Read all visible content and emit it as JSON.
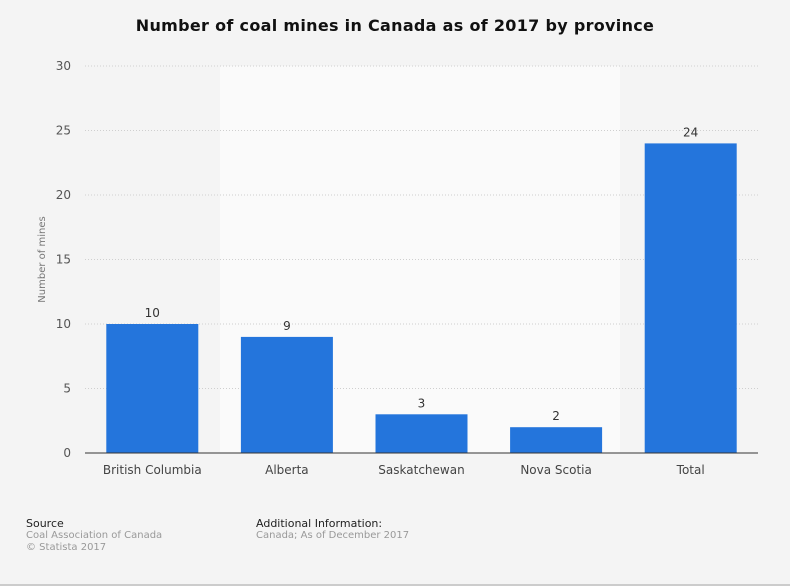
{
  "chart_data": {
    "type": "bar",
    "title": "Number of coal mines in Canada as of 2017 by province",
    "xlabel": "",
    "ylabel": "Number of mines",
    "categories": [
      "British Columbia",
      "Alberta",
      "Saskatchewan",
      "Nova Scotia",
      "Total"
    ],
    "values": [
      10,
      9,
      3,
      2,
      24
    ],
    "ylim": [
      0,
      30
    ],
    "yticks": [
      0,
      5,
      10,
      15,
      20,
      25,
      30
    ],
    "grid": true,
    "bar_color": "#2475dc"
  },
  "footer": {
    "source_label": "Source",
    "source": "Coal Association of Canada",
    "copyright": "© Statista 2017",
    "additional_label": "Additional Information:",
    "additional": "Canada; As of December 2017"
  }
}
